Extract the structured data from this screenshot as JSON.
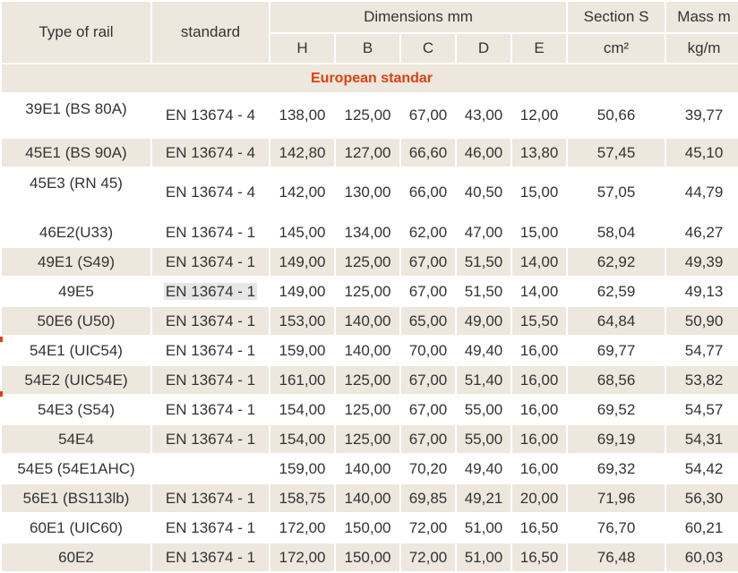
{
  "headers": {
    "type": "Type of rail",
    "standard": "standard",
    "dimensions": "Dimensions mm",
    "section": "Section S",
    "mass": "Mass m",
    "sub": [
      "H",
      "B",
      "C",
      "D",
      "E"
    ],
    "section_unit": "cm²",
    "mass_unit": "kg/m"
  },
  "section_title": "European standar",
  "rows": [
    {
      "type": "39E1 (BS 80A)",
      "standard": "EN 13674 - 4",
      "H": "138,00",
      "B": "125,00",
      "C": "67,00",
      "D": "43,00",
      "E": "12,00",
      "S": "50,66",
      "m": "39,77"
    },
    {
      "type": "45E1 (BS 90A)",
      "standard": "EN 13674 - 4",
      "H": "142,80",
      "B": "127,00",
      "C": "66,60",
      "D": "46,00",
      "E": "13,80",
      "S": "57,45",
      "m": "45,10"
    },
    {
      "type": "45E3 (RN 45)",
      "standard": "EN 13674 - 4",
      "H": "142,00",
      "B": "130,00",
      "C": "66,00",
      "D": "40,50",
      "E": "15,00",
      "S": "57,05",
      "m": "44,79"
    },
    {
      "type": "46E2(U33)",
      "standard": "EN 13674 - 1",
      "H": "145,00",
      "B": "134,00",
      "C": "62,00",
      "D": "47,00",
      "E": "15,00",
      "S": "58,04",
      "m": "46,27"
    },
    {
      "type": "49E1 (S49)",
      "standard": "EN 13674 - 1",
      "H": "149,00",
      "B": "125,00",
      "C": "67,00",
      "D": "51,50",
      "E": "14,00",
      "S": "62,92",
      "m": "49,39"
    },
    {
      "type": "49E5",
      "standard": "EN 13674 - 1",
      "H": "149,00",
      "B": "125,00",
      "C": "67,00",
      "D": "51,50",
      "E": "14,00",
      "S": "62,59",
      "m": "49,13"
    },
    {
      "type": "50E6 (U50)",
      "standard": "EN 13674 - 1",
      "H": "153,00",
      "B": "140,00",
      "C": "65,00",
      "D": "49,00",
      "E": "15,50",
      "S": "64,84",
      "m": "50,90"
    },
    {
      "type": "54E1 (UIC54)",
      "standard": "EN 13674 - 1",
      "H": "159,00",
      "B": "140,00",
      "C": "70,00",
      "D": "49,40",
      "E": "16,00",
      "S": "69,77",
      "m": "54,77"
    },
    {
      "type": "54E2 (UIC54E)",
      "standard": "EN 13674 - 1",
      "H": "161,00",
      "B": "125,00",
      "C": "67,00",
      "D": "51,40",
      "E": "16,00",
      "S": "68,56",
      "m": "53,82"
    },
    {
      "type": "54E3 (S54)",
      "standard": "EN 13674 - 1",
      "H": "154,00",
      "B": "125,00",
      "C": "67,00",
      "D": "55,00",
      "E": "16,00",
      "S": "69,52",
      "m": "54,57"
    },
    {
      "type": "54E4",
      "standard": "EN 13674 - 1",
      "H": "154,00",
      "B": "125,00",
      "C": "67,00",
      "D": "55,00",
      "E": "16,00",
      "S": "69,19",
      "m": "54,31"
    },
    {
      "type": "54E5 (54E1AHC)",
      "standard": "",
      "H": "159,00",
      "B": "140,00",
      "C": "70,20",
      "D": "49,40",
      "E": "16,00",
      "S": "69,32",
      "m": "54,42"
    },
    {
      "type": "56E1 (BS113lb)",
      "standard": "EN 13674 - 1",
      "H": "158,75",
      "B": "140,00",
      "C": "69,85",
      "D": "49,21",
      "E": "20,00",
      "S": "71,96",
      "m": "56,30"
    },
    {
      "type": "60E1 (UIC60)",
      "standard": "EN 13674 - 1",
      "H": "172,00",
      "B": "150,00",
      "C": "72,00",
      "D": "51,00",
      "E": "16,50",
      "S": "76,70",
      "m": "60,21"
    },
    {
      "type": "60E2",
      "standard": "EN 13674 - 1",
      "H": "172,00",
      "B": "150,00",
      "C": "72,00",
      "D": "51,00",
      "E": "16,50",
      "S": "76,48",
      "m": "60,03"
    }
  ]
}
